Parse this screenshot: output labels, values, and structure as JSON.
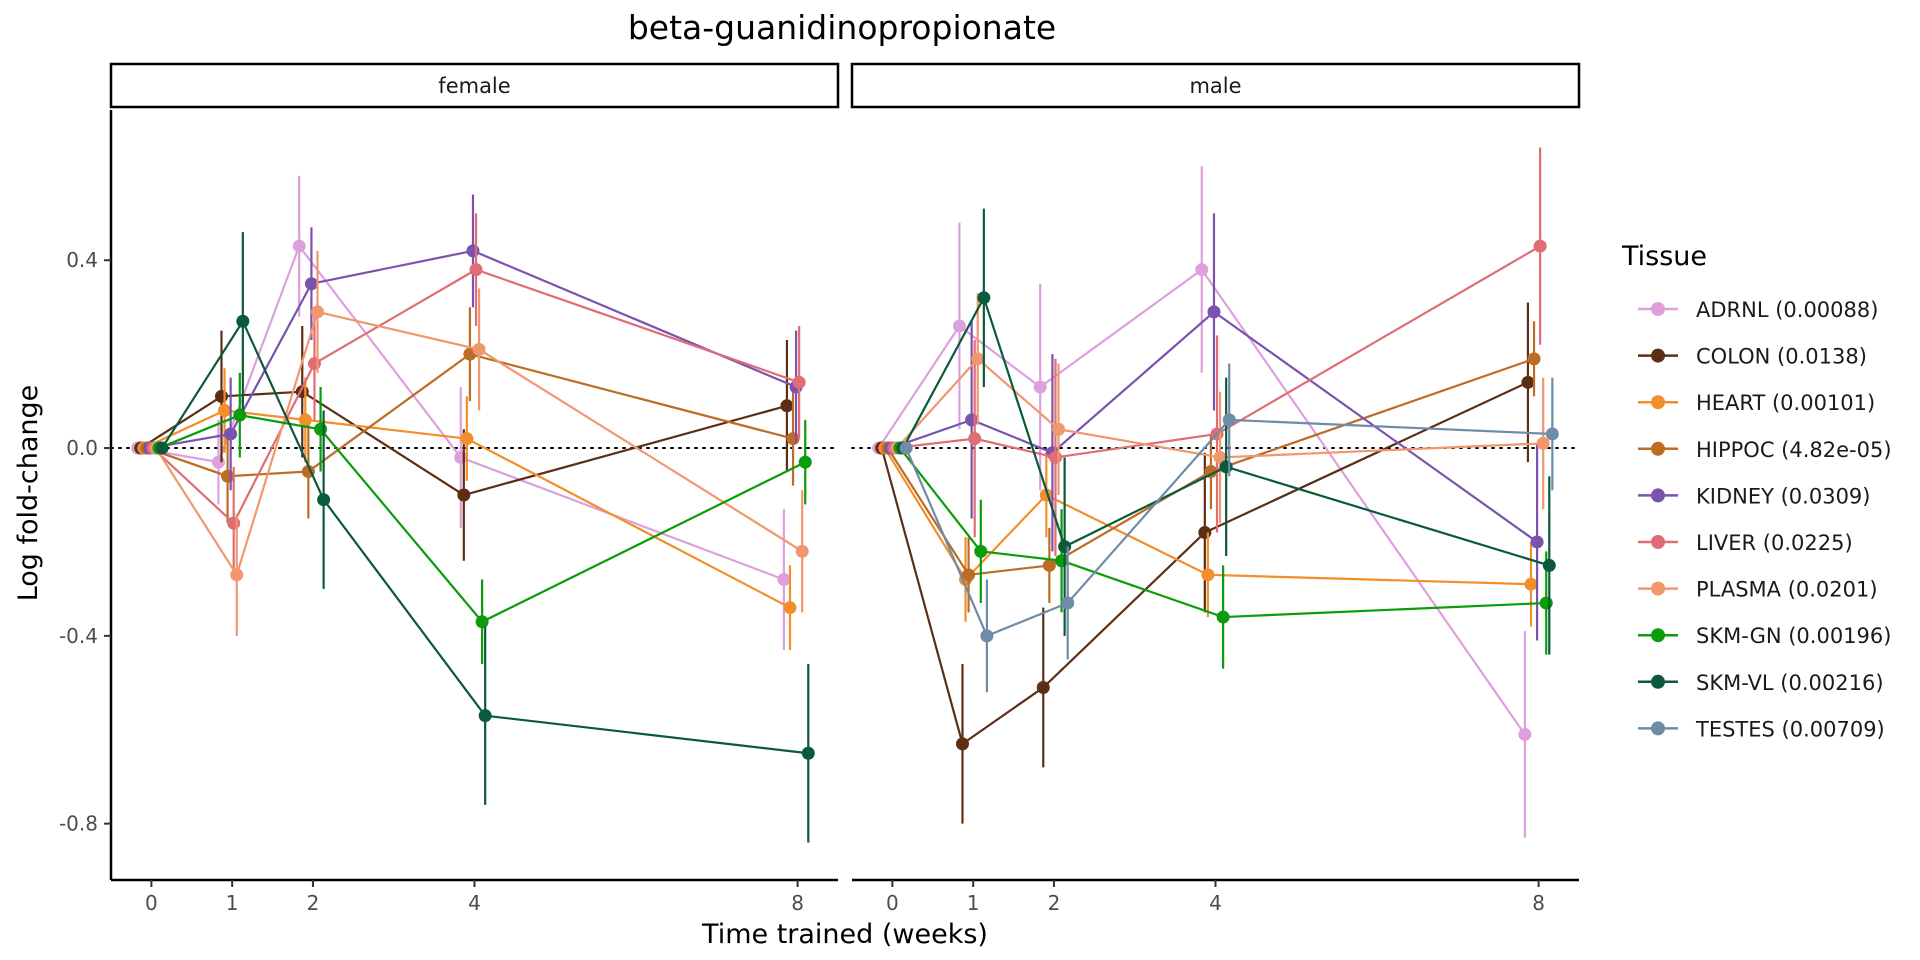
{
  "chart_data": {
    "type": "line",
    "title": "beta-guanidinopropionate",
    "xlabel": "Time trained (weeks)",
    "ylabel": "Log fold-change",
    "x_ticks": [
      0,
      1,
      2,
      4,
      8
    ],
    "y_ticks": [
      -0.8,
      -0.4,
      0.0,
      0.4
    ],
    "y_tick_labels": [
      "-0.8",
      "-0.4",
      "0.0",
      "0.4"
    ],
    "xlim": [
      -0.5,
      8.5
    ],
    "ylim": [
      -0.92,
      0.72
    ],
    "reference_line": 0,
    "legend": {
      "title": "Tissue",
      "placement": "right"
    },
    "facets": [
      "female",
      "male"
    ],
    "series": [
      {
        "name": "ADRNL (0.00088)",
        "color": "#DDA0DD",
        "female": {
          "x": [
            0,
            1,
            2,
            4,
            8
          ],
          "y": [
            0,
            -0.03,
            0.43,
            -0.02,
            -0.28
          ],
          "err": [
            0,
            0.09,
            0.15,
            0.15,
            0.15
          ]
        },
        "male": {
          "x": [
            0,
            1,
            2,
            4,
            8
          ],
          "y": [
            0,
            0.26,
            0.13,
            0.38,
            -0.61
          ],
          "err": [
            0,
            0.22,
            0.22,
            0.22,
            0.22
          ]
        }
      },
      {
        "name": "COLON (0.0138)",
        "color": "#5C2E14",
        "female": {
          "x": [
            0,
            1,
            2,
            4,
            8
          ],
          "y": [
            0,
            0.11,
            0.12,
            -0.1,
            0.09
          ],
          "err": [
            0,
            0.14,
            0.14,
            0.14,
            0.14
          ]
        },
        "male": {
          "x": [
            0,
            1,
            2,
            4,
            8
          ],
          "y": [
            0,
            -0.63,
            -0.51,
            -0.18,
            0.14
          ],
          "err": [
            0,
            0.17,
            0.17,
            0.17,
            0.17
          ]
        }
      },
      {
        "name": "HEART (0.00101)",
        "color": "#F28E2B",
        "female": {
          "x": [
            0,
            1,
            2,
            4,
            8
          ],
          "y": [
            0,
            0.08,
            0.06,
            0.02,
            -0.34
          ],
          "err": [
            0,
            0.09,
            0.09,
            0.09,
            0.09
          ]
        },
        "male": {
          "x": [
            0,
            1,
            2,
            4,
            8
          ],
          "y": [
            0,
            -0.28,
            -0.1,
            -0.27,
            -0.29
          ],
          "err": [
            0,
            0.09,
            0.09,
            0.09,
            0.09
          ]
        }
      },
      {
        "name": "HIPPOC (4.82e-05)",
        "color": "#BC6C25",
        "female": {
          "x": [
            0,
            1,
            2,
            4,
            8
          ],
          "y": [
            0,
            -0.06,
            -0.05,
            0.2,
            0.02
          ],
          "err": [
            0,
            0.1,
            0.1,
            0.1,
            0.1
          ]
        },
        "male": {
          "x": [
            0,
            1,
            2,
            4,
            8
          ],
          "y": [
            0,
            -0.27,
            -0.25,
            -0.05,
            0.19
          ],
          "err": [
            0,
            0.08,
            0.08,
            0.08,
            0.08
          ]
        }
      },
      {
        "name": "KIDNEY (0.0309)",
        "color": "#7B52AE",
        "female": {
          "x": [
            0,
            1,
            2,
            4,
            8
          ],
          "y": [
            0,
            0.03,
            0.35,
            0.42,
            0.13
          ],
          "err": [
            0,
            0.12,
            0.12,
            0.12,
            0.12
          ]
        },
        "male": {
          "x": [
            0,
            1,
            2,
            4,
            8
          ],
          "y": [
            0,
            0.06,
            -0.01,
            0.29,
            -0.2
          ],
          "err": [
            0,
            0.21,
            0.21,
            0.21,
            0.21
          ]
        }
      },
      {
        "name": "LIVER (0.0225)",
        "color": "#E06C75",
        "female": {
          "x": [
            0,
            1,
            2,
            4,
            8
          ],
          "y": [
            0,
            -0.16,
            0.18,
            0.38,
            0.14
          ],
          "err": [
            0,
            0.12,
            0.12,
            0.12,
            0.12
          ]
        },
        "male": {
          "x": [
            0,
            1,
            2,
            4,
            8
          ],
          "y": [
            0,
            0.02,
            -0.02,
            0.03,
            0.43
          ],
          "err": [
            0,
            0.21,
            0.21,
            0.21,
            0.21
          ]
        }
      },
      {
        "name": "PLASMA (0.0201)",
        "color": "#F0976D",
        "female": {
          "x": [
            0,
            1,
            2,
            4,
            8
          ],
          "y": [
            0,
            -0.27,
            0.29,
            0.21,
            -0.22
          ],
          "err": [
            0,
            0.13,
            0.13,
            0.13,
            0.13
          ]
        },
        "male": {
          "x": [
            0,
            1,
            2,
            4,
            8
          ],
          "y": [
            0,
            0.19,
            0.04,
            -0.02,
            0.01
          ],
          "err": [
            0,
            0.14,
            0.14,
            0.14,
            0.14
          ]
        }
      },
      {
        "name": "SKM-GN (0.00196)",
        "color": "#0A9C0A",
        "female": {
          "x": [
            0,
            1,
            2,
            4,
            8
          ],
          "y": [
            0,
            0.07,
            0.04,
            -0.37,
            -0.03
          ],
          "err": [
            0,
            0.09,
            0.09,
            0.09,
            0.09
          ]
        },
        "male": {
          "x": [
            0,
            1,
            2,
            4,
            8
          ],
          "y": [
            0,
            -0.22,
            -0.24,
            -0.36,
            -0.33
          ],
          "err": [
            0,
            0.11,
            0.11,
            0.11,
            0.11
          ]
        }
      },
      {
        "name": "SKM-VL (0.00216)",
        "color": "#0B5A3C",
        "female": {
          "x": [
            0,
            1,
            2,
            4,
            8
          ],
          "y": [
            0,
            0.27,
            -0.11,
            -0.57,
            -0.65
          ],
          "err": [
            0,
            0.19,
            0.19,
            0.19,
            0.19
          ]
        },
        "male": {
          "x": [
            0,
            1,
            2,
            4,
            8
          ],
          "y": [
            0,
            0.32,
            -0.21,
            -0.04,
            -0.25
          ],
          "err": [
            0,
            0.19,
            0.19,
            0.19,
            0.19
          ]
        }
      },
      {
        "name": "TESTES (0.00709)",
        "color": "#6E8BA8",
        "male": {
          "x": [
            0,
            1,
            2,
            4,
            8
          ],
          "y": [
            0,
            -0.4,
            -0.33,
            0.06,
            0.03
          ],
          "err": [
            0,
            0.12,
            0.12,
            0.12,
            0.12
          ]
        }
      }
    ]
  }
}
